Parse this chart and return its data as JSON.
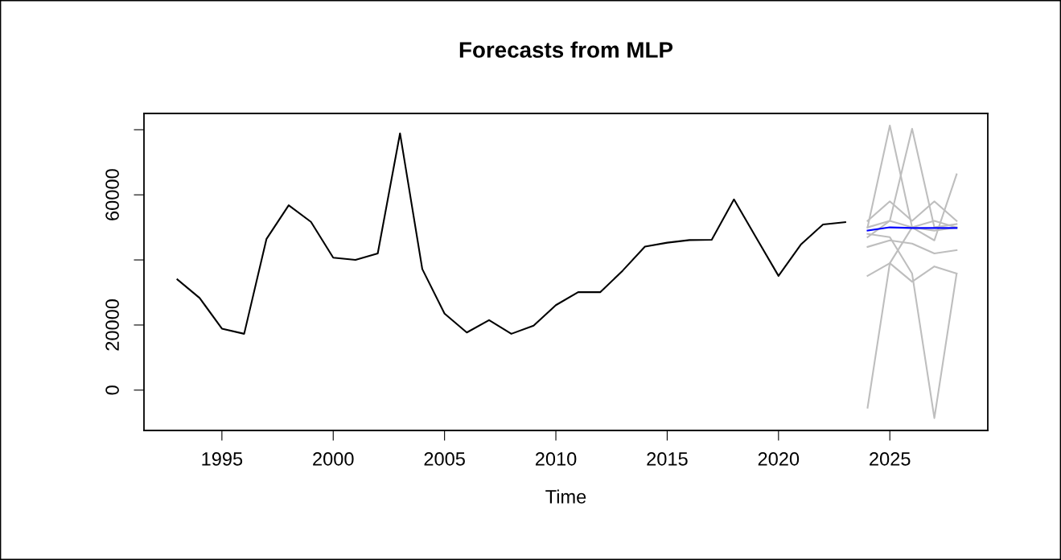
{
  "chart_data": {
    "type": "line",
    "title": "Forecasts from MLP",
    "xlabel": "Time",
    "x": [
      1993,
      1994,
      1995,
      1996,
      1997,
      1998,
      1999,
      2000,
      2001,
      2002,
      2003,
      2004,
      2005,
      2006,
      2007,
      2008,
      2009,
      2010,
      2011,
      2012,
      2013,
      2014,
      2015,
      2016,
      2017,
      2018,
      2019,
      2020,
      2021,
      2022,
      2023
    ],
    "series": [
      {
        "color": "#bebebe",
        "x": [
          2024,
          2025,
          2026,
          2027,
          2028
        ],
        "values": [
          50000,
          81300,
          50000,
          52000,
          50000
        ]
      },
      {
        "color": "#bebebe",
        "x": [
          2024,
          2025,
          2026,
          2027,
          2028
        ],
        "values": [
          50000,
          52000,
          80300,
          50000,
          51000
        ]
      },
      {
        "color": "#bebebe",
        "x": [
          2024,
          2025,
          2026,
          2027,
          2028
        ],
        "values": [
          -5400,
          39000,
          50000,
          49000,
          50000
        ]
      },
      {
        "color": "#bebebe",
        "x": [
          2024,
          2025,
          2026,
          2027,
          2028
        ],
        "values": [
          48000,
          47000,
          35800,
          -8600,
          35800
        ]
      },
      {
        "color": "#bebebe",
        "x": [
          2024,
          2025,
          2026,
          2027,
          2028
        ],
        "values": [
          47000,
          52000,
          50000,
          46000,
          66300
        ]
      },
      {
        "color": "#bebebe",
        "x": [
          2024,
          2025,
          2026,
          2027,
          2028
        ],
        "values": [
          35100,
          39000,
          33300,
          38000,
          35800
        ]
      },
      {
        "color": "#bebebe",
        "x": [
          2024,
          2025,
          2026,
          2027,
          2028
        ],
        "values": [
          52000,
          58000,
          52000,
          58000,
          52000
        ]
      },
      {
        "color": "#bebebe",
        "x": [
          2024,
          2025,
          2026,
          2027,
          2028
        ],
        "values": [
          44000,
          46000,
          45000,
          42000,
          43000
        ]
      },
      {
        "color": "#000000",
        "values": [
          34000,
          28300,
          18900,
          17300,
          46400,
          56800,
          51700,
          40700,
          40000,
          42000,
          78900,
          37200,
          23500,
          17700,
          21500,
          17300,
          19800,
          26100,
          30100,
          30100,
          36700,
          44100,
          45300,
          46100,
          46200,
          58600,
          46800,
          35100,
          44700,
          50900,
          51600
        ]
      },
      {
        "color": "#0000ff",
        "x": [
          2024,
          2025,
          2026,
          2027,
          2028
        ],
        "values": [
          49000,
          50000,
          49800,
          49800,
          49800
        ]
      }
    ],
    "xlim": [
      1991.5,
      2029.4
    ],
    "xticks": [
      1995,
      2000,
      2005,
      2010,
      2015,
      2020,
      2025
    ],
    "ylim": [
      -12400,
      85000
    ],
    "yticks": [
      0,
      20000,
      {
        "value": 40000,
        "label": null
      },
      60000,
      {
        "value": 80000,
        "label": null
      }
    ],
    "grid": false,
    "legend": false
  }
}
